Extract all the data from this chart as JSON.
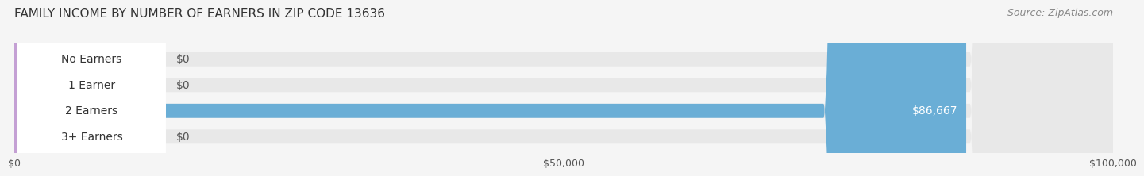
{
  "title": "FAMILY INCOME BY NUMBER OF EARNERS IN ZIP CODE 13636",
  "source": "Source: ZipAtlas.com",
  "categories": [
    "No Earners",
    "1 Earner",
    "2 Earners",
    "3+ Earners"
  ],
  "values": [
    0,
    0,
    86667,
    0
  ],
  "bar_colors": [
    "#f5bc8a",
    "#f08080",
    "#6aaed6",
    "#c4a0d4"
  ],
  "xlim": [
    0,
    100000
  ],
  "xticks": [
    0,
    50000,
    100000
  ],
  "xticklabels": [
    "$0",
    "$50,000",
    "$100,000"
  ],
  "bar_height": 0.55,
  "background_color": "#f5f5f5",
  "bar_bg_color": "#e8e8e8",
  "title_fontsize": 11,
  "source_fontsize": 9,
  "label_fontsize": 10,
  "value_label_color_inside": "#ffffff",
  "value_label_color_outside": "#555555"
}
